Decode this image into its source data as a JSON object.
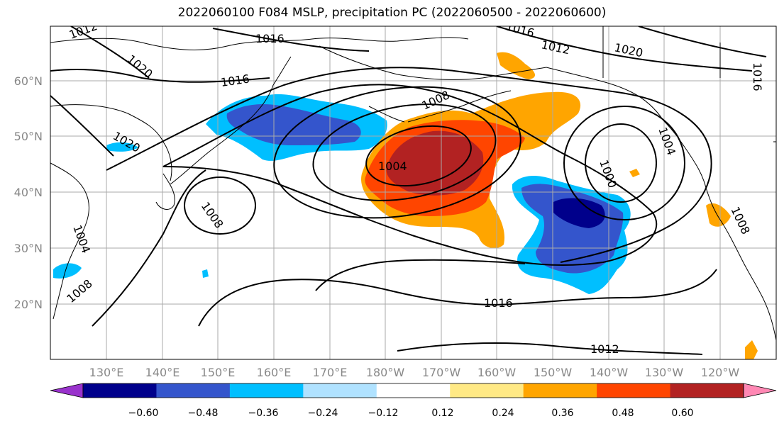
{
  "title": "2022060100 F084 MSLP, precipitation PC (2022060500 - 2022060600)",
  "map": {
    "lon_ticks": [
      "130°E",
      "140°E",
      "150°E",
      "160°E",
      "170°E",
      "180°W",
      "170°W",
      "160°W",
      "150°W",
      "140°W",
      "130°W",
      "120°W"
    ],
    "lat_ticks": [
      "60°N",
      "50°N",
      "40°N",
      "30°N",
      "20°N"
    ],
    "mslp_contour_labels": [
      "1012",
      "1016",
      "1020",
      "1016",
      "1020",
      "1012",
      "1016",
      "1008",
      "1016",
      "1020",
      "1004",
      "1004",
      "1000",
      "1008",
      "1004",
      "1008",
      "1016",
      "1012",
      "1008"
    ]
  },
  "colorbar": {
    "ticks": [
      "−0.60",
      "−0.48",
      "−0.36",
      "−0.24",
      "−0.12",
      "0.12",
      "0.24",
      "0.36",
      "0.48",
      "0.60"
    ],
    "colors": [
      "#9932cc",
      "#00008b",
      "#3455cc",
      "#00bfff",
      "#b0e2ff",
      "#ffffff",
      "#ffe985",
      "#ffa500",
      "#ff4500",
      "#b22222",
      "#ff88b4"
    ]
  },
  "chart_data": {
    "type": "contour_map",
    "field_contours": "MSLP (hPa)",
    "field_shaded": "precipitation PC",
    "contour_levels": [
      1000,
      1004,
      1008,
      1012,
      1016,
      1020
    ],
    "color_levels": [
      -0.6,
      -0.48,
      -0.36,
      -0.24,
      -0.12,
      0.12,
      0.24,
      0.36,
      0.48,
      0.6
    ],
    "lon_range": [
      "120°E",
      "115°W"
    ],
    "lat_range": [
      "10°N",
      "70°N"
    ]
  }
}
